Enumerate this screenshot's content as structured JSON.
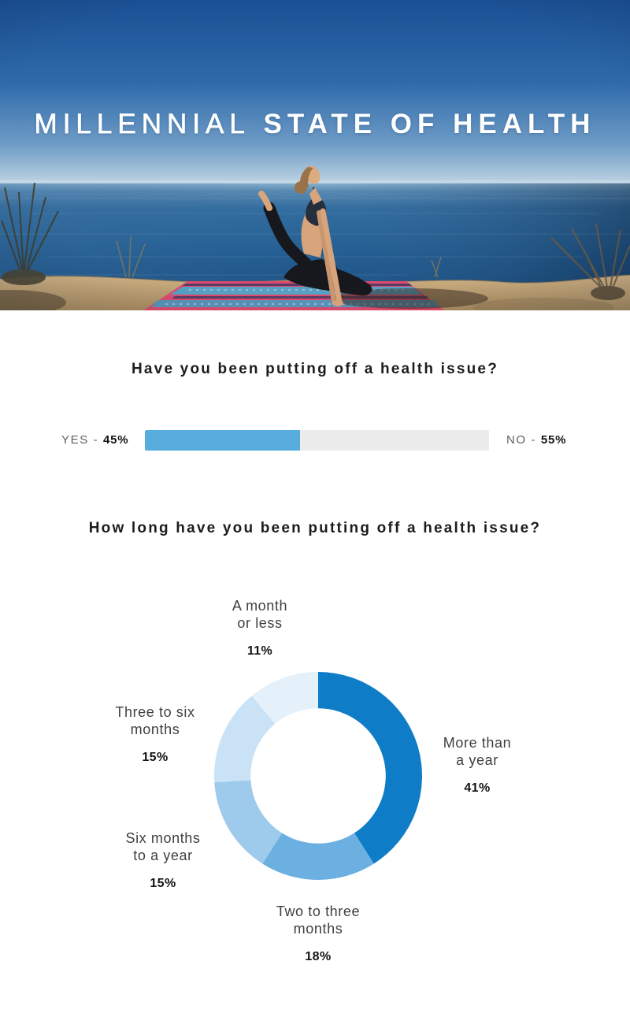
{
  "hero": {
    "title_part1": "MILLENNIAL",
    "title_part2": "STATE OF HEALTH"
  },
  "colors": {
    "bar_blue": "#57aede",
    "bar_track": "#ececec",
    "donut_dark_blue": "#0f7cc7",
    "donut_medium_blue": "#6bb0e1",
    "donut_light_blue": "#9ecaec",
    "donut_pale_blue": "#c9e2f5",
    "donut_palest_blue": "#e4f0fa"
  },
  "chart_data": [
    {
      "type": "bar",
      "title": "Have you been putting off a health issue?",
      "categories": [
        "Yes",
        "No"
      ],
      "values": [
        45,
        55
      ],
      "left": {
        "prefix": "YES - ",
        "value": "45%"
      },
      "right": {
        "prefix": "NO - ",
        "value": "55%"
      },
      "bar_color": "#57aede",
      "track_color": "#ececec",
      "layout": "single horizontal stacked bar, YES fill from left"
    },
    {
      "type": "pie",
      "donut": true,
      "title": "How long have you been putting off a health issue?",
      "start_angle_deg": 0,
      "direction": "clockwise-from-12-oclock",
      "inner_radius_ratio": 0.65,
      "segments": [
        {
          "label": "More than a year",
          "label_lines": [
            "More than",
            "a year"
          ],
          "value": 41,
          "pct_label": "41%",
          "color": "#0f7cc7"
        },
        {
          "label": "Two to three months",
          "label_lines": [
            "Two to three",
            "months"
          ],
          "value": 18,
          "pct_label": "18%",
          "color": "#6bb0e1"
        },
        {
          "label": "Six months to a year",
          "label_lines": [
            "Six months",
            "to a year"
          ],
          "value": 15,
          "pct_label": "15%",
          "color": "#9ecaec"
        },
        {
          "label": "Three to six months",
          "label_lines": [
            "Three to six",
            "months"
          ],
          "value": 15,
          "pct_label": "15%",
          "color": "#c9e2f5"
        },
        {
          "label": "A month or less",
          "label_lines": [
            "A month",
            "or less"
          ],
          "value": 11,
          "pct_label": "11%",
          "color": "#e4f0fa"
        }
      ]
    }
  ]
}
